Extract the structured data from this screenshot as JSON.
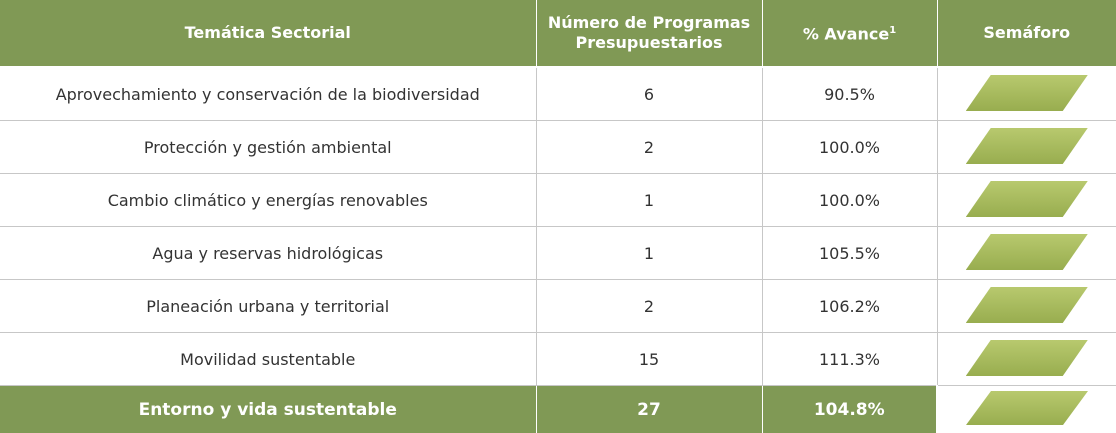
{
  "headers": {
    "tematica": "Temática Sectorial",
    "programas_line1": "Número de Programas",
    "programas_line2": "Presupuestarios",
    "avance": "% Avance",
    "avance_note": "1",
    "semaforo": "Semáforo"
  },
  "rows": [
    {
      "tematica": "Aprovechamiento y conservación de la biodiversidad",
      "programas": "6",
      "avance": "90.5%",
      "semaforo": "green"
    },
    {
      "tematica": "Protección y gestión ambiental",
      "programas": "2",
      "avance": "100.0%",
      "semaforo": "green"
    },
    {
      "tematica": "Cambio climático y energías renovables",
      "programas": "1",
      "avance": "100.0%",
      "semaforo": "green"
    },
    {
      "tematica": "Agua y reservas hidrológicas",
      "programas": "1",
      "avance": "105.5%",
      "semaforo": "green"
    },
    {
      "tematica": "Planeación urbana y territorial",
      "programas": "2",
      "avance": "106.2%",
      "semaforo": "green"
    },
    {
      "tematica": "Movilidad sustentable",
      "programas": "15",
      "avance": "111.3%",
      "semaforo": "green"
    }
  ],
  "total": {
    "tematica": "Entorno y vida sustentable",
    "programas": "27",
    "avance": "104.8%",
    "semaforo": "green"
  },
  "colors": {
    "header_bg": "#809955",
    "semaforo_green": "#a9bd5e"
  }
}
